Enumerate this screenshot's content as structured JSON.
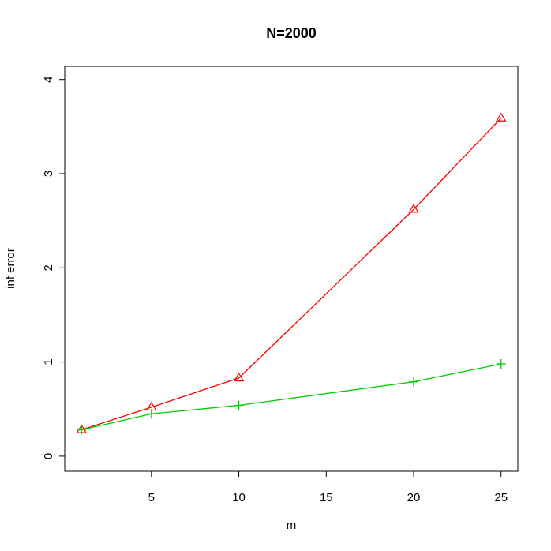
{
  "chart_data": {
    "type": "line",
    "title": "N=2000",
    "x_label": "m",
    "y_label": "inf error",
    "x": [
      1,
      5,
      10,
      20,
      25
    ],
    "series": [
      {
        "name": "red",
        "color": "#ff0000",
        "marker": "triangle",
        "values": [
          0.28,
          0.52,
          0.83,
          2.62,
          3.59
        ]
      },
      {
        "name": "green",
        "color": "#00cd00",
        "marker": "plus",
        "values": [
          0.28,
          0.45,
          0.54,
          0.79,
          0.98
        ]
      }
    ],
    "xlim": [
      0.04,
      25.96
    ],
    "xticks": [
      5,
      10,
      15,
      20,
      25
    ],
    "ylim": [
      -0.16,
      4.14
    ],
    "yticks": [
      0,
      1,
      2,
      3,
      4
    ]
  }
}
